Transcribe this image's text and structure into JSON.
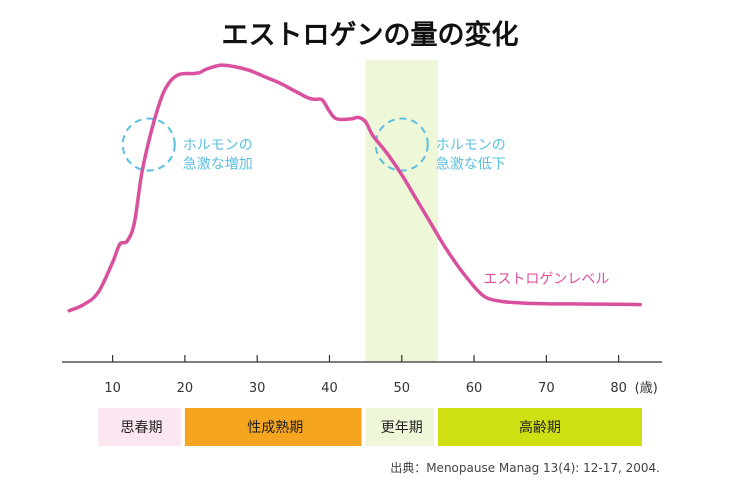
{
  "chart_data": {
    "type": "line",
    "title": "エストロゲンの量の変化",
    "xlabel": "",
    "x_unit": "(歳)",
    "ylabel": "",
    "xlim": [
      3,
      86
    ],
    "ylim": [
      0,
      100
    ],
    "x_ticks": [
      10,
      20,
      30,
      40,
      50,
      60,
      70,
      80
    ],
    "grid": false,
    "series": [
      {
        "name": "エストロゲンレベル",
        "color": "#d9509e",
        "points": [
          [
            4,
            17
          ],
          [
            6,
            19
          ],
          [
            8,
            23
          ],
          [
            10,
            33
          ],
          [
            11,
            39
          ],
          [
            12,
            40
          ],
          [
            13,
            46
          ],
          [
            14,
            62
          ],
          [
            15,
            73
          ],
          [
            16,
            82
          ],
          [
            17,
            89
          ],
          [
            18,
            93
          ],
          [
            19,
            95
          ],
          [
            20,
            95.5
          ],
          [
            21,
            95.5
          ],
          [
            22,
            95.8
          ],
          [
            23,
            97
          ],
          [
            25,
            98.3
          ],
          [
            27,
            97.7
          ],
          [
            29,
            96.5
          ],
          [
            31,
            94.5
          ],
          [
            33,
            92.5
          ],
          [
            35,
            90
          ],
          [
            37,
            87.5
          ],
          [
            38,
            87
          ],
          [
            39,
            86.8
          ],
          [
            40,
            83
          ],
          [
            41,
            80.5
          ],
          [
            43,
            80.5
          ],
          [
            44,
            81
          ],
          [
            45,
            79.5
          ],
          [
            46,
            75
          ],
          [
            48,
            69
          ],
          [
            50,
            62
          ],
          [
            52,
            54
          ],
          [
            54,
            46
          ],
          [
            56,
            38
          ],
          [
            58,
            31
          ],
          [
            60,
            25
          ],
          [
            61,
            22.5
          ],
          [
            62,
            21
          ],
          [
            64,
            20
          ],
          [
            67,
            19.5
          ],
          [
            70,
            19.3
          ],
          [
            75,
            19.2
          ],
          [
            80,
            19.1
          ],
          [
            83,
            19
          ]
        ]
      }
    ],
    "annotations": [
      {
        "text_lines": [
          "ホルモンの",
          "急激な増加"
        ],
        "x": 15,
        "y": 72,
        "color": "#5bbfe0"
      },
      {
        "text_lines": [
          "ホルモンの",
          "急激な低下"
        ],
        "x": 50,
        "y": 72,
        "color": "#5bbfe0"
      }
    ],
    "highlight_band": {
      "x_range": [
        45,
        55
      ],
      "color": "#eff7d9",
      "label": "更年期"
    },
    "life_stages": [
      {
        "label": "思春期",
        "x_range": [
          8,
          20
        ],
        "color": "#fbe7f2"
      },
      {
        "label": "性成熟期",
        "x_range": [
          20,
          45
        ],
        "color": "#f5a51f"
      },
      {
        "label": "更年期",
        "x_range": [
          45,
          55
        ],
        "color": "#eff7d9"
      },
      {
        "label": "高齢期",
        "x_range": [
          55,
          86
        ],
        "color": "#cfe012"
      }
    ],
    "source": "出典：Menopause Manag 13(4): 12-17, 2004."
  }
}
